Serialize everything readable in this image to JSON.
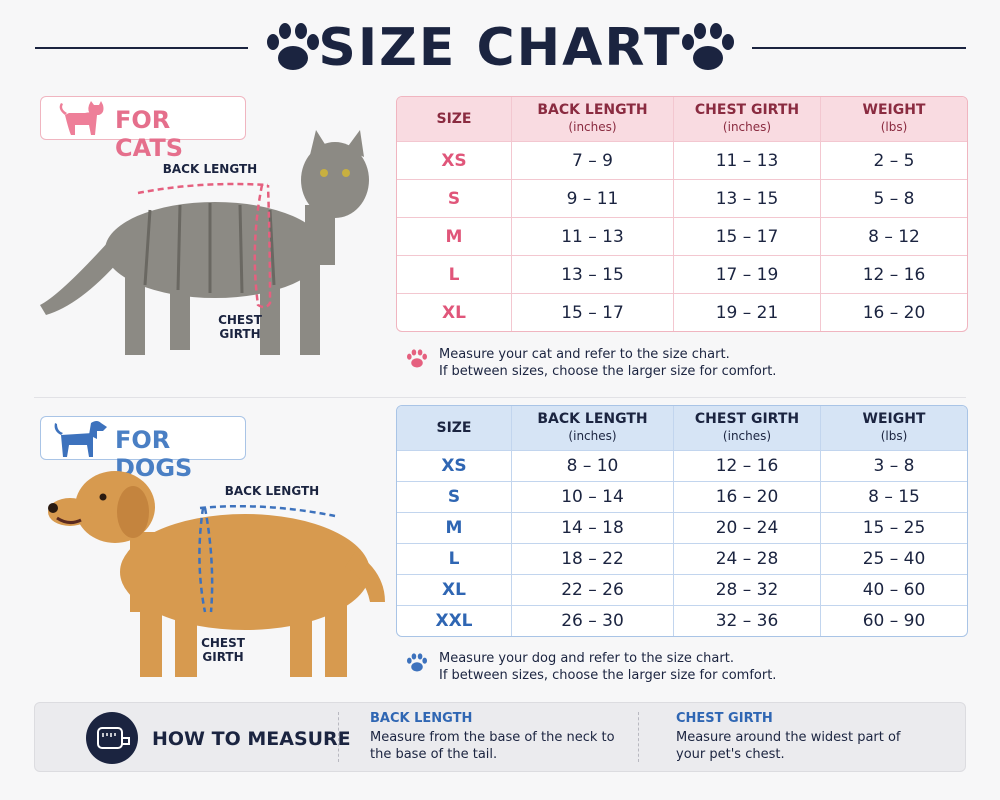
{
  "title": "SIZE CHART",
  "cats": {
    "heading": "FOR CATS",
    "back_label": "BACK LENGTH",
    "chest_label": [
      "CHEST",
      "GIRTH"
    ],
    "table": {
      "header": [
        [
          "SIZE"
        ],
        [
          "BACK LENGTH",
          "(inches)"
        ],
        [
          "CHEST GIRTH",
          "(inches)"
        ],
        [
          "WEIGHT",
          "(lbs)"
        ]
      ],
      "rows": [
        [
          "XS",
          "7 – 9",
          "11 – 13",
          "2 – 5"
        ],
        [
          "S",
          "9 – 11",
          "13 – 15",
          "5 – 8"
        ],
        [
          "M",
          "11 – 13",
          "15 – 17",
          "8 – 12"
        ],
        [
          "L",
          "13 – 15",
          "17 – 19",
          "12 – 16"
        ],
        [
          "XL",
          "15 – 17",
          "19 – 21",
          "16 – 20"
        ]
      ]
    },
    "note": [
      "Measure your cat and refer to the size chart.",
      "If between sizes, choose the larger size for comfort."
    ]
  },
  "dogs": {
    "heading": "FOR DOGS",
    "back_label": "BACK LENGTH",
    "chest_label": [
      "CHEST",
      "GIRTH"
    ],
    "table": {
      "header": [
        [
          "SIZE"
        ],
        [
          "BACK LENGTH",
          "(inches)"
        ],
        [
          "CHEST GIRTH",
          "(inches)"
        ],
        [
          "WEIGHT",
          "(lbs)"
        ]
      ],
      "rows": [
        [
          "XS",
          "8 – 10",
          "12 – 16",
          "3 – 8"
        ],
        [
          "S",
          "10 – 14",
          "16 – 20",
          "8 – 15"
        ],
        [
          "M",
          "14 – 18",
          "20 – 24",
          "15 – 25"
        ],
        [
          "L",
          "18 – 22",
          "24 – 28",
          "25 – 40"
        ],
        [
          "XL",
          "22 – 26",
          "28 – 32",
          "40 – 60"
        ],
        [
          "XXL",
          "26 – 30",
          "32 – 36",
          "60 – 90"
        ]
      ]
    },
    "note": [
      "Measure your dog and refer to the size chart.",
      "If between sizes, choose the larger size for comfort."
    ]
  },
  "how_to": {
    "title": "HOW TO MEASURE",
    "items": [
      {
        "title": "BACK LENGTH",
        "text": [
          "Measure from the base of the neck to",
          "the base of the tail."
        ]
      },
      {
        "title": "CHEST GIRTH",
        "text": [
          "Measure around the widest part of",
          "your pet's chest."
        ]
      }
    ]
  }
}
